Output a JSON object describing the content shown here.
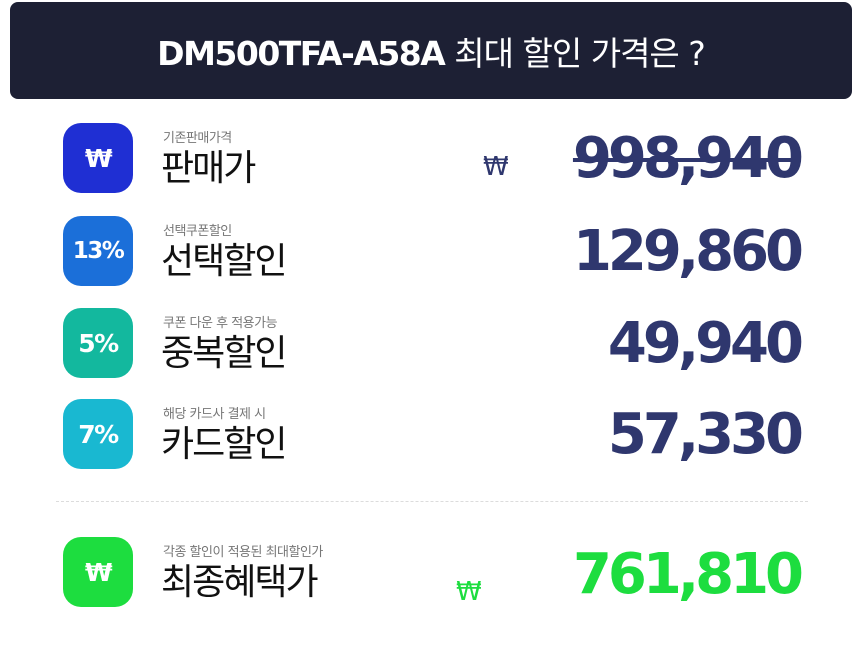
{
  "header": {
    "model": "DM500TFA-A58A",
    "question": "최대 할인 가격은 ?"
  },
  "currency_symbol": "₩",
  "rows": [
    {
      "badge": "₩",
      "badge_color": "#1f2fd3",
      "sub": "기존판매가격",
      "label": "판매가",
      "price": "998,940",
      "strikethrough": true
    },
    {
      "badge": "13%",
      "badge_color": "#1b6fd9",
      "sub": "선택쿠폰할인",
      "label": "선택할인",
      "price": "129,860"
    },
    {
      "badge": "5%",
      "badge_color": "#13b89e",
      "sub": "쿠폰 다운 후 적용가능",
      "label": "중복할인",
      "price": "49,940"
    },
    {
      "badge": "7%",
      "badge_color": "#19b8d1",
      "sub": "해당 카드사 결제 시",
      "label": "카드할인",
      "price": "57,330"
    }
  ],
  "final": {
    "badge": "₩",
    "badge_color": "#1ddd3f",
    "sub": "각종 할인이 적용된 최대할인가",
    "label": "최종혜택가",
    "price": "761,810",
    "price_color": "#1ddd3f"
  },
  "colors": {
    "banner_bg": "#1d2034",
    "price_text": "#2f376e"
  }
}
